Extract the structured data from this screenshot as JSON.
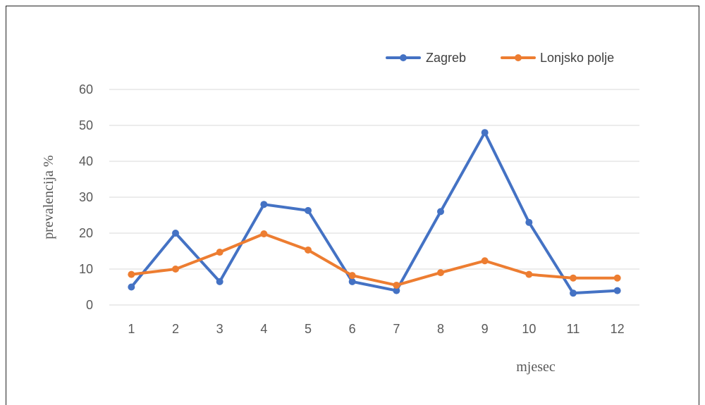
{
  "chart_data": {
    "type": "line",
    "x": [
      1,
      2,
      3,
      4,
      5,
      6,
      7,
      8,
      9,
      10,
      11,
      12
    ],
    "categories": [
      "1",
      "2",
      "3",
      "4",
      "5",
      "6",
      "7",
      "8",
      "9",
      "10",
      "11",
      "12"
    ],
    "xlabel": "mjesec",
    "ylabel": "prevalencija %",
    "ylim": [
      0,
      60
    ],
    "yticks": [
      "0",
      "10",
      "20",
      "30",
      "40",
      "50",
      "60"
    ],
    "grid": "horizontal",
    "legend_position": "top-right",
    "series": [
      {
        "name": "Zagreb",
        "color": "#4472C4",
        "values": [
          5,
          20,
          6.5,
          28,
          26.3,
          6.5,
          4,
          26,
          48,
          23,
          3.3,
          4
        ]
      },
      {
        "name": "Lonjsko polje",
        "color": "#ED7D31",
        "values": [
          8.5,
          10,
          14.7,
          19.8,
          15.3,
          8.2,
          5.5,
          9,
          12.3,
          8.5,
          7.5,
          7.5
        ]
      }
    ]
  }
}
